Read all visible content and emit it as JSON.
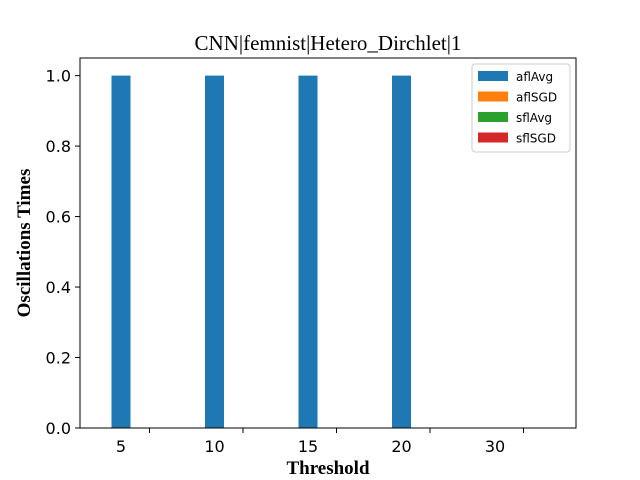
{
  "chart_data": {
    "type": "bar",
    "title": "CNN|femnist|Hetero_Dirchlet|1",
    "xlabel": "Threshold",
    "ylabel": "Oscillations Times",
    "categories": [
      "5",
      "10",
      "15",
      "20",
      "30"
    ],
    "ylim": [
      0,
      1.05
    ],
    "yticks": [
      "0.0",
      "0.2",
      "0.4",
      "0.6",
      "0.8",
      "1.0"
    ],
    "grid": false,
    "legend_position": "top-right",
    "series": [
      {
        "name": "aflAvg",
        "color": "#1f77b4",
        "values": [
          1,
          1,
          1,
          1,
          0
        ]
      },
      {
        "name": "aflSGD",
        "color": "#ff7f0e",
        "values": [
          0,
          0,
          0,
          0,
          0
        ]
      },
      {
        "name": "sflAvg",
        "color": "#2ca02c",
        "values": [
          0,
          0,
          0,
          0,
          0
        ]
      },
      {
        "name": "sflSGD",
        "color": "#d62728",
        "values": [
          0,
          0,
          0,
          0,
          0
        ]
      }
    ]
  }
}
